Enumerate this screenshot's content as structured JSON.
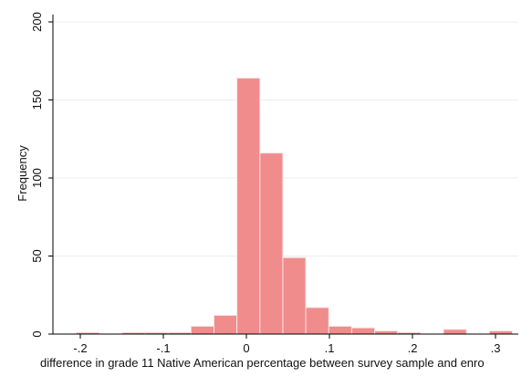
{
  "chart_data": {
    "type": "bar",
    "title": "",
    "xlabel": "difference in grade 11 Native American percentage between survey sample and enro",
    "ylabel": "Frequency",
    "xlim": [
      -0.225,
      0.33
    ],
    "ylim": [
      0,
      200
    ],
    "x_ticks": [
      -0.2,
      -0.1,
      0,
      0.1,
      0.2,
      0.3
    ],
    "x_tick_labels": [
      "-.2",
      "-.1",
      "0",
      ".1",
      ".2",
      ".3"
    ],
    "y_ticks": [
      0,
      50,
      100,
      150,
      200
    ],
    "y_tick_labels": [
      "0",
      "50",
      "100",
      "150",
      "200"
    ],
    "grid": true,
    "bar_color": "#f08c8c",
    "bins": [
      {
        "x0": -0.2049,
        "x1": -0.1772,
        "count": 1
      },
      {
        "x0": -0.1772,
        "x1": -0.1496,
        "count": 0
      },
      {
        "x0": -0.1496,
        "x1": -0.122,
        "count": 1
      },
      {
        "x0": -0.122,
        "x1": -0.0943,
        "count": 1
      },
      {
        "x0": -0.0943,
        "x1": -0.0667,
        "count": 1
      },
      {
        "x0": -0.0667,
        "x1": -0.039,
        "count": 5
      },
      {
        "x0": -0.039,
        "x1": -0.0114,
        "count": 12
      },
      {
        "x0": -0.0114,
        "x1": 0.0163,
        "count": 164
      },
      {
        "x0": 0.0163,
        "x1": 0.0439,
        "count": 116
      },
      {
        "x0": 0.0439,
        "x1": 0.0715,
        "count": 49
      },
      {
        "x0": 0.0715,
        "x1": 0.0992,
        "count": 17
      },
      {
        "x0": 0.0992,
        "x1": 0.1268,
        "count": 5
      },
      {
        "x0": 0.1268,
        "x1": 0.1545,
        "count": 4
      },
      {
        "x0": 0.1545,
        "x1": 0.1821,
        "count": 2
      },
      {
        "x0": 0.1821,
        "x1": 0.2098,
        "count": 1
      },
      {
        "x0": 0.2098,
        "x1": 0.2374,
        "count": 0
      },
      {
        "x0": 0.2374,
        "x1": 0.265,
        "count": 3
      },
      {
        "x0": 0.265,
        "x1": 0.2927,
        "count": 0
      },
      {
        "x0": 0.2927,
        "x1": 0.3203,
        "count": 2
      }
    ]
  }
}
